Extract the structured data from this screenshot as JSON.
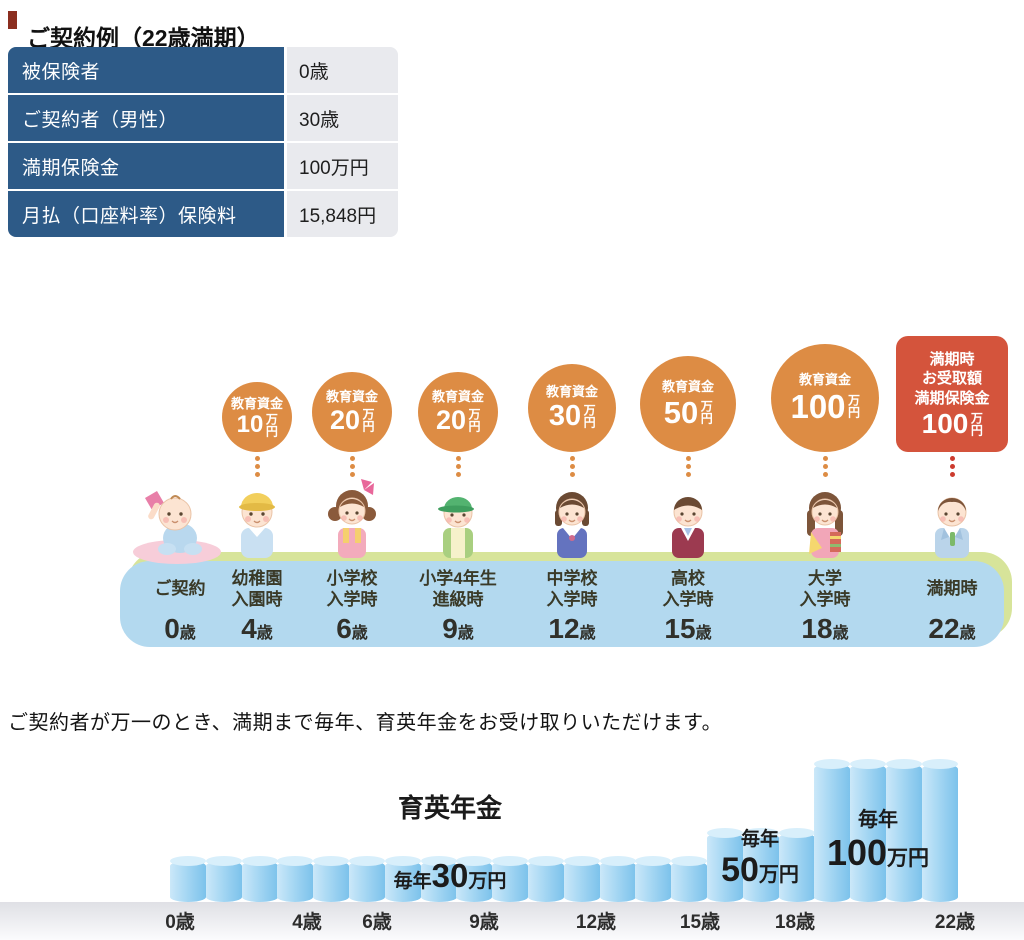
{
  "header": {
    "title": "ご契約例（22歳満期）"
  },
  "contract_table": {
    "rows": [
      {
        "label": "被保険者",
        "value": "0歳"
      },
      {
        "label": "ご契約者（男性）",
        "value": "30歳"
      },
      {
        "label": "満期保険金",
        "value": "100万円"
      },
      {
        "label": "月払（口座料率）保険料",
        "value": "15,848円"
      }
    ]
  },
  "timeline": {
    "benefits": [
      {
        "label": "教育資金",
        "amount": "10",
        "unit": "万円"
      },
      {
        "label": "教育資金",
        "amount": "20",
        "unit": "万円"
      },
      {
        "label": "教育資金",
        "amount": "20",
        "unit": "万円"
      },
      {
        "label": "教育資金",
        "amount": "30",
        "unit": "万円"
      },
      {
        "label": "教育資金",
        "amount": "50",
        "unit": "万円"
      },
      {
        "label": "教育資金",
        "amount": "100",
        "unit": "万円"
      }
    ],
    "maturity_box": {
      "line1": "満期時",
      "line2": "お受取額",
      "line3": "満期保険金",
      "amount": "100",
      "unit": "万円"
    },
    "milestones": [
      {
        "stage1": "ご契約",
        "stage2": "",
        "age": "0",
        "age_unit": "歳"
      },
      {
        "stage1": "幼稚園",
        "stage2": "入園時",
        "age": "4",
        "age_unit": "歳"
      },
      {
        "stage1": "小学校",
        "stage2": "入学時",
        "age": "6",
        "age_unit": "歳"
      },
      {
        "stage1": "小学4年生",
        "stage2": "進級時",
        "age": "9",
        "age_unit": "歳"
      },
      {
        "stage1": "中学校",
        "stage2": "入学時",
        "age": "12",
        "age_unit": "歳"
      },
      {
        "stage1": "高校",
        "stage2": "入学時",
        "age": "15",
        "age_unit": "歳"
      },
      {
        "stage1": "大学",
        "stage2": "入学時",
        "age": "18",
        "age_unit": "歳"
      },
      {
        "stage1": "満期時",
        "stage2": "",
        "age": "22",
        "age_unit": "歳"
      }
    ],
    "figures": [
      "baby",
      "kindergarten-boy",
      "elementary-girl",
      "elementary-boy",
      "junior-high-girl",
      "high-school-boy",
      "university-girl",
      "adult-man"
    ]
  },
  "note": "ご契約者が万一のとき、満期まで毎年、育英年金をお受け取りいただけます。",
  "chart_data": {
    "type": "bar",
    "title": "育英年金",
    "x_tick_labels": [
      "0歳",
      "4歳",
      "6歳",
      "9歳",
      "12歳",
      "15歳",
      "18歳",
      "22歳"
    ],
    "ylim": [
      0,
      100
    ],
    "bar_color": "#9fd2f0",
    "segments": [
      {
        "prefix": "毎年",
        "amount": "30",
        "unit": "万円",
        "value": 30,
        "bar_count": 15
      },
      {
        "prefix": "毎年",
        "amount": "50",
        "unit": "万円",
        "value": 50,
        "bar_count": 3
      },
      {
        "prefix": "毎年",
        "amount": "100",
        "unit": "万円",
        "value": 100,
        "bar_count": 4
      }
    ]
  },
  "colors": {
    "title_bullet": "#8b2e1f",
    "table_header_bg": "#2d5a87",
    "table_value_bg": "#e9eaee",
    "benefit_circle": "#dd8c44",
    "maturity_box": "#d4543c",
    "timeline_band": "#d7e49a",
    "band_shadow": "#b3d9ef",
    "cylinder_blue": "#9fd2f0"
  }
}
